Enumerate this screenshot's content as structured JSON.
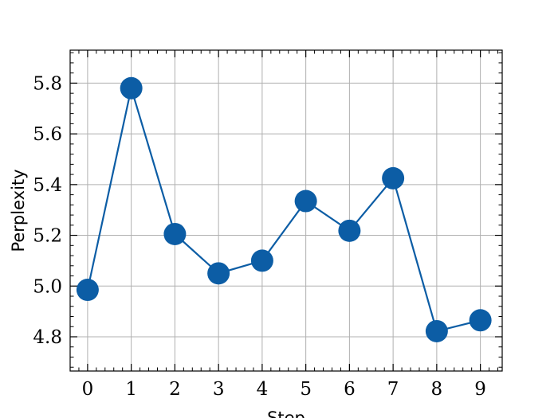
{
  "chart_data": {
    "type": "line",
    "title": "",
    "xlabel": "Step",
    "ylabel": "Perplexity",
    "x": [
      0,
      1,
      2,
      3,
      4,
      5,
      6,
      7,
      8,
      9
    ],
    "series": [
      {
        "values": [
          4.985,
          5.78,
          5.205,
          5.05,
          5.1,
          5.335,
          5.218,
          5.425,
          4.822,
          4.865
        ]
      }
    ],
    "xlim": [
      -0.4,
      9.5
    ],
    "ylim": [
      4.665,
      5.93
    ],
    "xticks": [
      "0",
      "1",
      "2",
      "3",
      "4",
      "5",
      "6",
      "7",
      "8",
      "9"
    ],
    "yticks": [
      "4.8",
      "5.0",
      "5.2",
      "5.4",
      "5.6",
      "5.8"
    ],
    "grid": true,
    "marker": "circle",
    "color": "#0C5DA5"
  }
}
